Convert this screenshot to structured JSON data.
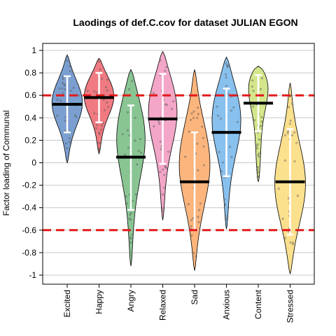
{
  "chart_data": {
    "type": "violin",
    "title": "Laodings of def.C.cov for dataset JULIAN EGON",
    "xlabel": "",
    "ylabel": "Factor loading of Communal",
    "ylim": [
      -1.05,
      1.05
    ],
    "yticks": [
      -1,
      -0.8,
      -0.6,
      -0.4,
      -0.2,
      0,
      0.2,
      0.4,
      0.6,
      0.8,
      1
    ],
    "ytick_labels": [
      "-1",
      "-0.8",
      "-0.6",
      "-0.4",
      "-0.2",
      "0",
      "0.2",
      "0.4",
      "0.6",
      "0.8",
      "1"
    ],
    "grid": true,
    "reference_lines": [
      0.6,
      -0.6
    ],
    "reference_line_color": "#e31a1c",
    "categories": [
      "Excited",
      "Happy",
      "Angry",
      "Relaxed",
      "Sad",
      "Anxious",
      "Content",
      "Stressed"
    ],
    "series": [
      {
        "category": "Excited",
        "color": "#7b9fd0",
        "min": 0.0,
        "max": 0.96,
        "mean": 0.52,
        "whisker_low": 0.27,
        "whisker_high": 0.77,
        "mode": 0.55
      },
      {
        "category": "Happy",
        "color": "#f07b82",
        "min": 0.08,
        "max": 0.93,
        "mean": 0.58,
        "whisker_low": 0.36,
        "whisker_high": 0.8,
        "mode": 0.62
      },
      {
        "category": "Angry",
        "color": "#89c593",
        "min": -0.92,
        "max": 0.83,
        "mean": 0.05,
        "whisker_low": -0.42,
        "whisker_high": 0.51,
        "mode": 0.3
      },
      {
        "category": "Relaxed",
        "color": "#f3a6c8",
        "min": -0.51,
        "max": 0.99,
        "mean": 0.39,
        "whisker_low": -0.01,
        "whisker_high": 0.79,
        "mode": 0.52
      },
      {
        "category": "Sad",
        "color": "#fbb57d",
        "min": -0.96,
        "max": 0.83,
        "mean": -0.17,
        "whisker_low": -0.6,
        "whisker_high": 0.27,
        "mode": 0.0
      },
      {
        "category": "Anxious",
        "color": "#88c0ee",
        "min": -0.59,
        "max": 0.94,
        "mean": 0.27,
        "whisker_low": -0.12,
        "whisker_high": 0.66,
        "mode": 0.45
      },
      {
        "category": "Content",
        "color": "#d4e68c",
        "min": -0.17,
        "max": 0.86,
        "mean": 0.53,
        "whisker_low": 0.28,
        "whisker_high": 0.78,
        "mode": 0.8
      },
      {
        "category": "Stressed",
        "color": "#fbe08e",
        "min": -0.99,
        "max": 0.71,
        "mean": -0.17,
        "whisker_low": -0.64,
        "whisker_high": 0.3,
        "mode": -0.2
      }
    ]
  }
}
